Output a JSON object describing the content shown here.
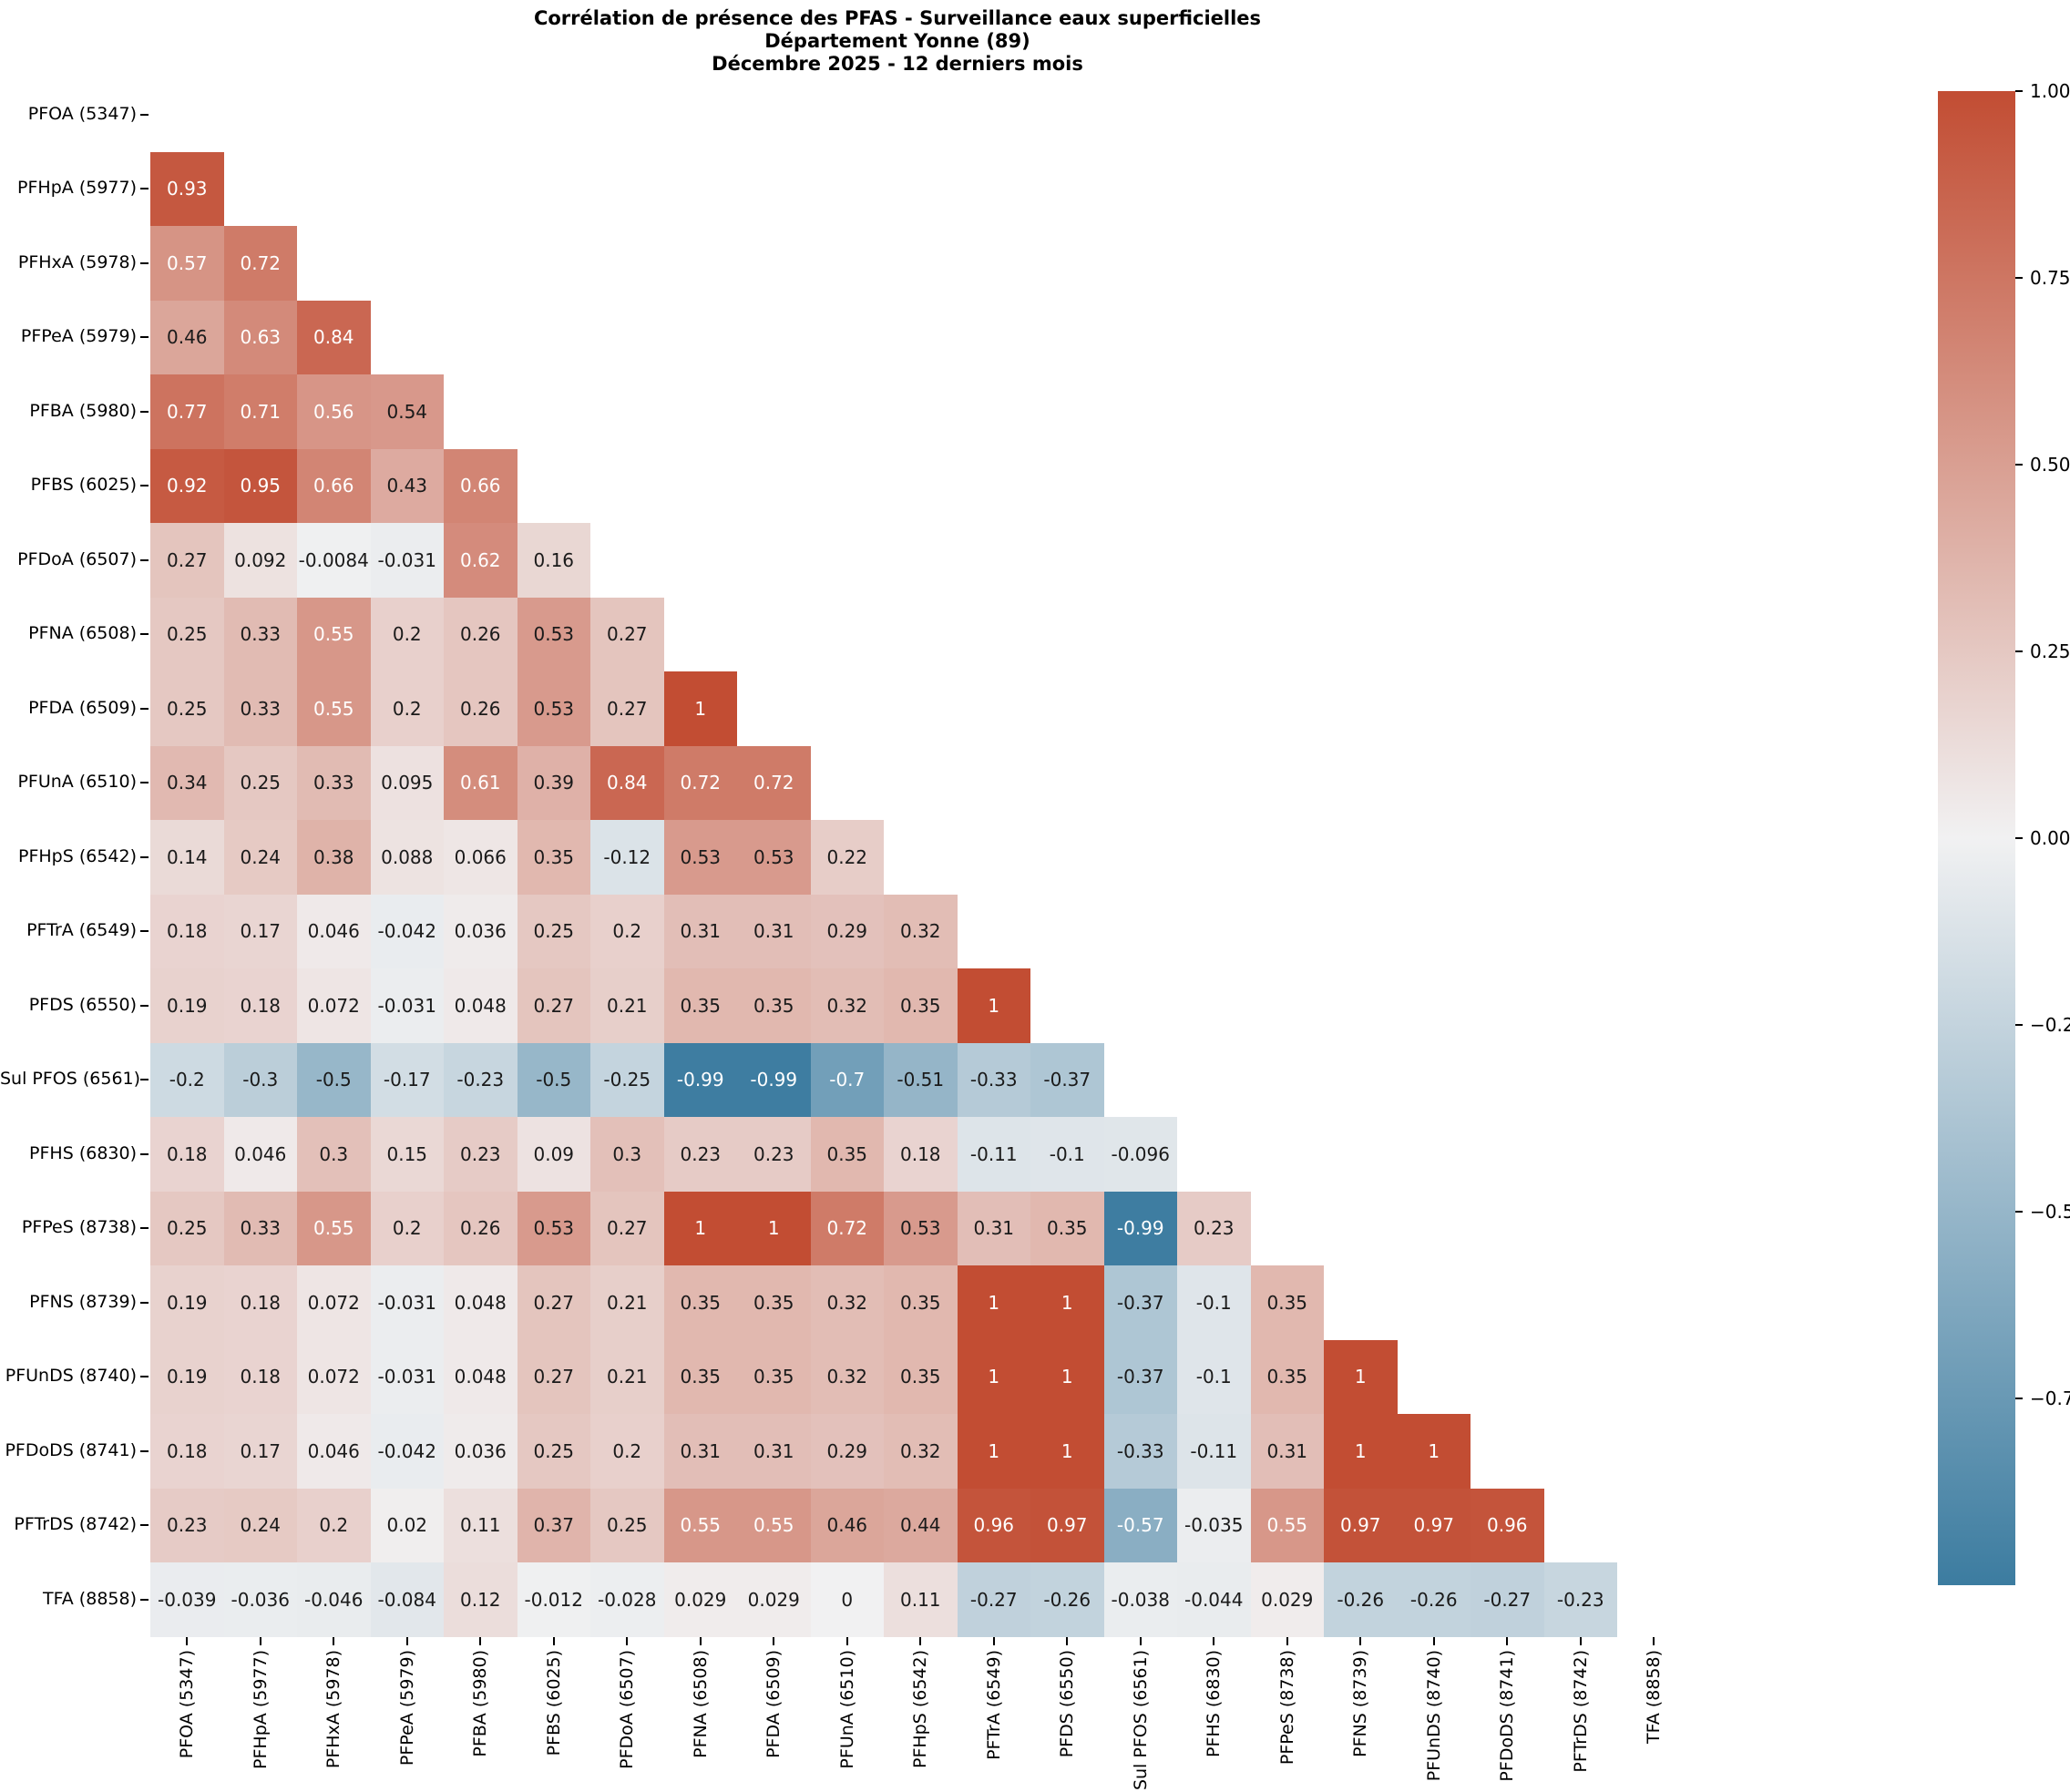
{
  "title": {
    "line1": "Corrélation de présence des PFAS - Surveillance eaux superficielles",
    "line2": "Département Yonne (89)",
    "line3": "Décembre 2025 - 12 derniers mois"
  },
  "chart_data": {
    "type": "heatmap",
    "shape": "lower-triangle-masked-diagonal",
    "value_range": [
      -1,
      1
    ],
    "labels": [
      "PFOA (5347)",
      "PFHpA (5977)",
      "PFHxA (5978)",
      "PFPeA (5979)",
      "PFBA (5980)",
      "PFBS (6025)",
      "PFDoA (6507)",
      "PFNA (6508)",
      "PFDA (6509)",
      "PFUnA (6510)",
      "PFHpS (6542)",
      "PFTrA (6549)",
      "PFDS (6550)",
      "Sul PFOS (6561)",
      "PFHS (6830)",
      "PFPeS (8738)",
      "PFNS (8739)",
      "PFUnDS (8740)",
      "PFDoDS (8741)",
      "PFTrDS (8742)",
      "TFA (8858)"
    ],
    "rows": [
      {
        "label": "PFOA (5347)",
        "values": []
      },
      {
        "label": "PFHpA (5977)",
        "values": [
          "0.93"
        ]
      },
      {
        "label": "PFHxA (5978)",
        "values": [
          "0.57",
          "0.72"
        ]
      },
      {
        "label": "PFPeA (5979)",
        "values": [
          "0.46",
          "0.63",
          "0.84"
        ]
      },
      {
        "label": "PFBA (5980)",
        "values": [
          "0.77",
          "0.71",
          "0.56",
          "0.54"
        ]
      },
      {
        "label": "PFBS (6025)",
        "values": [
          "0.92",
          "0.95",
          "0.66",
          "0.43",
          "0.66"
        ]
      },
      {
        "label": "PFDoA (6507)",
        "values": [
          "0.27",
          "0.092",
          "-0.0084",
          "-0.031",
          "0.62",
          "0.16"
        ]
      },
      {
        "label": "PFNA (6508)",
        "values": [
          "0.25",
          "0.33",
          "0.55",
          "0.2",
          "0.26",
          "0.53",
          "0.27"
        ]
      },
      {
        "label": "PFDA (6509)",
        "values": [
          "0.25",
          "0.33",
          "0.55",
          "0.2",
          "0.26",
          "0.53",
          "0.27",
          "1"
        ]
      },
      {
        "label": "PFUnA (6510)",
        "values": [
          "0.34",
          "0.25",
          "0.33",
          "0.095",
          "0.61",
          "0.39",
          "0.84",
          "0.72",
          "0.72"
        ]
      },
      {
        "label": "PFHpS (6542)",
        "values": [
          "0.14",
          "0.24",
          "0.38",
          "0.088",
          "0.066",
          "0.35",
          "-0.12",
          "0.53",
          "0.53",
          "0.22"
        ]
      },
      {
        "label": "PFTrA (6549)",
        "values": [
          "0.18",
          "0.17",
          "0.046",
          "-0.042",
          "0.036",
          "0.25",
          "0.2",
          "0.31",
          "0.31",
          "0.29",
          "0.32"
        ]
      },
      {
        "label": "PFDS (6550)",
        "values": [
          "0.19",
          "0.18",
          "0.072",
          "-0.031",
          "0.048",
          "0.27",
          "0.21",
          "0.35",
          "0.35",
          "0.32",
          "0.35",
          "1"
        ]
      },
      {
        "label": "Sul PFOS (6561)",
        "values": [
          "-0.2",
          "-0.3",
          "-0.5",
          "-0.17",
          "-0.23",
          "-0.5",
          "-0.25",
          "-0.99",
          "-0.99",
          "-0.7",
          "-0.51",
          "-0.33",
          "-0.37"
        ]
      },
      {
        "label": "PFHS (6830)",
        "values": [
          "0.18",
          "0.046",
          "0.3",
          "0.15",
          "0.23",
          "0.09",
          "0.3",
          "0.23",
          "0.23",
          "0.35",
          "0.18",
          "-0.11",
          "-0.1",
          "-0.096"
        ]
      },
      {
        "label": "PFPeS (8738)",
        "values": [
          "0.25",
          "0.33",
          "0.55",
          "0.2",
          "0.26",
          "0.53",
          "0.27",
          "1",
          "1",
          "0.72",
          "0.53",
          "0.31",
          "0.35",
          "-0.99",
          "0.23"
        ]
      },
      {
        "label": "PFNS (8739)",
        "values": [
          "0.19",
          "0.18",
          "0.072",
          "-0.031",
          "0.048",
          "0.27",
          "0.21",
          "0.35",
          "0.35",
          "0.32",
          "0.35",
          "1",
          "1",
          "-0.37",
          "-0.1",
          "0.35"
        ]
      },
      {
        "label": "PFUnDS (8740)",
        "values": [
          "0.19",
          "0.18",
          "0.072",
          "-0.031",
          "0.048",
          "0.27",
          "0.21",
          "0.35",
          "0.35",
          "0.32",
          "0.35",
          "1",
          "1",
          "-0.37",
          "-0.1",
          "0.35",
          "1"
        ]
      },
      {
        "label": "PFDoDS (8741)",
        "values": [
          "0.18",
          "0.17",
          "0.046",
          "-0.042",
          "0.036",
          "0.25",
          "0.2",
          "0.31",
          "0.31",
          "0.29",
          "0.32",
          "1",
          "1",
          "-0.33",
          "-0.11",
          "0.31",
          "1",
          "1"
        ]
      },
      {
        "label": "PFTrDS (8742)",
        "values": [
          "0.23",
          "0.24",
          "0.2",
          "0.02",
          "0.11",
          "0.37",
          "0.25",
          "0.55",
          "0.55",
          "0.46",
          "0.44",
          "0.96",
          "0.97",
          "-0.57",
          "-0.035",
          "0.55",
          "0.97",
          "0.97",
          "0.96"
        ]
      },
      {
        "label": "TFA (8858)",
        "values": [
          "-0.039",
          "-0.036",
          "-0.046",
          "-0.084",
          "0.12",
          "-0.012",
          "-0.028",
          "0.029",
          "0.029",
          "0",
          "0.11",
          "-0.27",
          "-0.26",
          "-0.038",
          "-0.044",
          "0.029",
          "-0.26",
          "-0.26",
          "-0.27",
          "-0.23"
        ]
      }
    ],
    "colors": {
      "positive_end": "#c24d33",
      "midpoint": "#f1f1f2",
      "negative_end": "#3c7ca0",
      "annotation_dark": "#1a1a1a",
      "annotation_light": "#ffffff"
    },
    "colorbar": {
      "position": "right",
      "ticks": [
        {
          "label": "1.00",
          "value": 1.0
        },
        {
          "label": "0.75",
          "value": 0.75
        },
        {
          "label": "0.50",
          "value": 0.5
        },
        {
          "label": "0.25",
          "value": 0.25
        },
        {
          "label": "0.00",
          "value": 0.0
        },
        {
          "label": "−0.25",
          "value": -0.25
        },
        {
          "label": "−0.50",
          "value": -0.5
        },
        {
          "label": "−0.75",
          "value": -0.75
        }
      ]
    }
  }
}
